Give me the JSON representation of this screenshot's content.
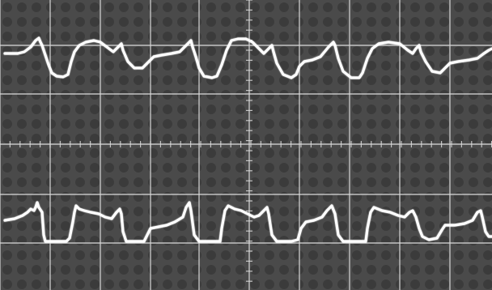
{
  "scene": {
    "kind": "oscilloscope-photograph",
    "grid": {
      "visible": true,
      "major_divisions_x": 10,
      "major_divisions_y": 6
    },
    "traces": [
      {
        "name": "upper-waveform",
        "visible_label": ""
      },
      {
        "name": "lower-waveform",
        "visible_label": ""
      }
    ],
    "colors": {
      "screen": "#4b4b4b",
      "grid": "#d9d9d9",
      "trace": "#ffffff",
      "bezel": "#f2f2f2"
    }
  }
}
